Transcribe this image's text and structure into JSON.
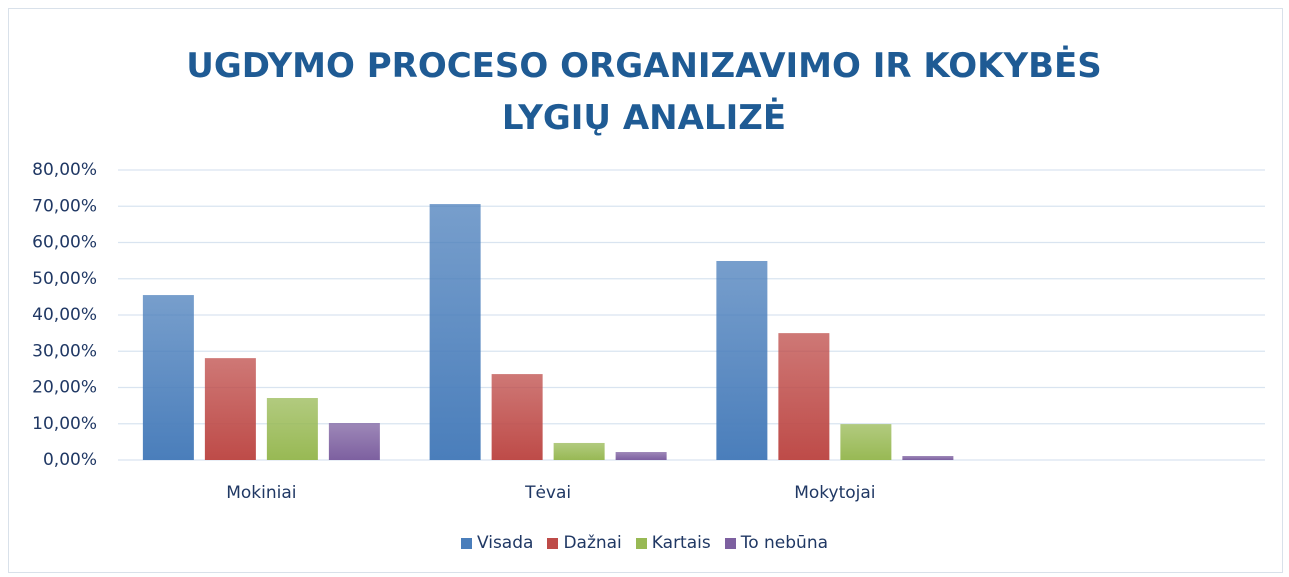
{
  "chart_data": {
    "type": "bar",
    "title": "UGDYMO PROCESO ORGANIZAVIMO IR KOKYBĖS LYGIŲ ANALIZĖ",
    "categories": [
      "Mokiniai",
      "Tėvai",
      "Mokytojai",
      null
    ],
    "series": [
      {
        "name": "Visada",
        "color": "#4a7ebb",
        "values": [
          45.5,
          70.6,
          54.9,
          null
        ]
      },
      {
        "name": "Dažnai",
        "color": "#be4b48",
        "values": [
          28.1,
          23.7,
          35.0,
          null
        ]
      },
      {
        "name": "Kartais",
        "color": "#98b954",
        "values": [
          17.1,
          4.7,
          9.9,
          null
        ]
      },
      {
        "name": "To nebūna",
        "color": "#7d60a0",
        "values": [
          10.2,
          2.2,
          1.1,
          null
        ]
      }
    ],
    "ylim": [
      0,
      80
    ],
    "yticks": [
      {
        "value": 0,
        "label": "0,00%"
      },
      {
        "value": 10,
        "label": "10,00%"
      },
      {
        "value": 20,
        "label": "20,00%"
      },
      {
        "value": 30,
        "label": "30,00%"
      },
      {
        "value": 40,
        "label": "40,00%"
      },
      {
        "value": 50,
        "label": "50,00%"
      },
      {
        "value": 60,
        "label": "60,00%"
      },
      {
        "value": 70,
        "label": "70,00%"
      },
      {
        "value": 80,
        "label": "80,00%"
      }
    ],
    "grid": true,
    "legend": "bottom"
  }
}
